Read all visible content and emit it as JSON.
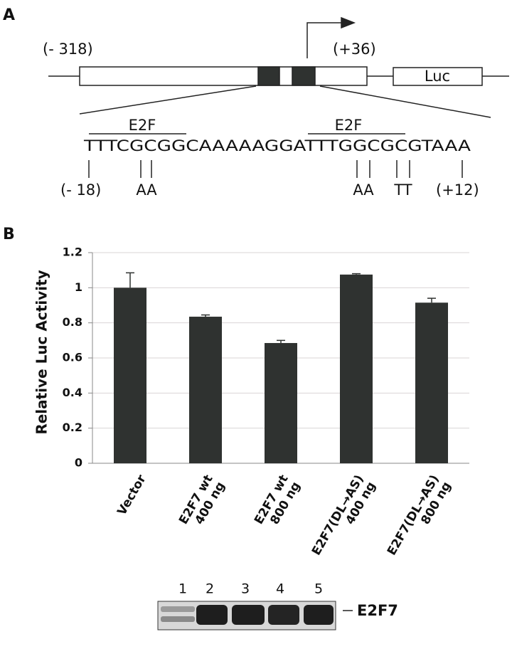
{
  "panel_a": {
    "label": "A",
    "left_coord": "(- 318)",
    "right_coord": "(+36)",
    "reporter": "Luc",
    "motifs": [
      "E2F",
      "E2F"
    ],
    "sequence": "TTTCGCGGCAAAAAGGATTTGGCGCGTAAA",
    "seq_start": "(- 18)",
    "seq_end": "(+12)",
    "mutations": [
      "AA",
      "AA",
      "TT"
    ]
  },
  "panel_b_label": "B",
  "chart_data": {
    "type": "bar",
    "y_label": "Relative Luc Activity",
    "categories": [
      "Vector",
      "E2F7 wt\n400 ng",
      "E2F7 wt\n800 ng",
      "E2F7(DL→AS)\n400 ng",
      "E2F7(DL→AS)\n800 ng"
    ],
    "values": [
      1.0,
      0.835,
      0.685,
      1.075,
      0.915
    ],
    "errors": [
      0.085,
      0.01,
      0.015,
      0.005,
      0.025
    ],
    "color": "#2f3230",
    "ylim": [
      0,
      1.2
    ],
    "yticks": [
      0,
      0.2,
      0.4,
      0.6,
      0.8,
      1,
      1.2
    ],
    "grid": true
  },
  "blot": {
    "lanes": [
      "1",
      "2",
      "3",
      "4",
      "5"
    ],
    "protein": "E2F7"
  }
}
